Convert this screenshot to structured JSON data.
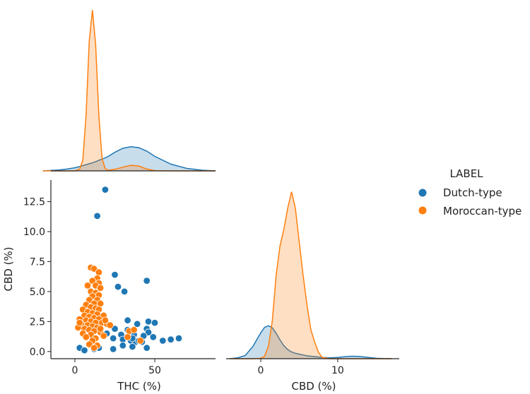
{
  "chart_data": {
    "type": "scatter",
    "subtype": "pairplot-corner",
    "hue_variable": "LABEL",
    "colors": {
      "Dutch-type": "#1f77b4",
      "Moroccan-type": "#ff7f0e"
    },
    "legend": {
      "title": "LABEL",
      "position": "right",
      "entries": [
        "Dutch-type",
        "Moroccan-type"
      ]
    },
    "variables": {
      "thc": {
        "label": "THC (%)",
        "xlim": [
          -15,
          88
        ],
        "ticks": [
          0,
          50
        ],
        "tick_labels": [
          "0",
          "50"
        ]
      },
      "cbd": {
        "label": "CBD (%)",
        "xlim": [
          -4.5,
          18
        ],
        "ylim": [
          -0.6,
          14.3
        ],
        "ticks_x": [
          0,
          10
        ],
        "tick_labels_x": [
          "0",
          "10"
        ],
        "ticks_y": [
          0.0,
          2.5,
          5.0,
          7.5,
          10.0,
          12.5
        ],
        "tick_labels_y": [
          "0.0",
          "2.5",
          "5.0",
          "7.5",
          "10.0",
          "12.5"
        ]
      }
    },
    "kde_thc": {
      "x": [
        -20,
        -10,
        -5,
        0,
        3,
        5,
        7,
        9,
        11,
        13,
        15,
        17,
        19,
        21,
        25,
        30,
        35,
        40,
        45,
        50,
        60,
        70,
        80,
        88
      ],
      "series": [
        {
          "name": "Dutch-type",
          "density": [
            0.0,
            0.0003,
            0.0006,
            0.001,
            0.0014,
            0.0017,
            0.002,
            0.0023,
            0.0026,
            0.003,
            0.0034,
            0.0038,
            0.0042,
            0.0047,
            0.006,
            0.0073,
            0.0078,
            0.0075,
            0.0064,
            0.0047,
            0.0022,
            0.0008,
            0.0002,
            0.0
          ]
        },
        {
          "name": "Moroccan-type",
          "density": [
            0.0,
            0.0,
            0.0,
            0.0,
            0.0006,
            0.0035,
            0.018,
            0.042,
            0.052,
            0.041,
            0.018,
            0.004,
            0.0007,
            0.0002,
            0.0005,
            0.0012,
            0.0018,
            0.0016,
            0.0006,
            0.0001,
            0.0,
            0.0,
            0.0,
            0.0
          ]
        }
      ]
    },
    "kde_cbd": {
      "x": [
        -4,
        -3,
        -2,
        -1,
        0,
        0.5,
        1,
        1.5,
        2,
        2.5,
        3,
        3.5,
        4,
        4.5,
        5,
        5.5,
        6,
        6.5,
        7,
        7.5,
        8,
        9,
        10,
        11,
        12,
        13,
        14,
        15,
        16,
        17
      ],
      "series": [
        {
          "name": "Dutch-type",
          "density": [
            0.0,
            0.002,
            0.008,
            0.03,
            0.062,
            0.075,
            0.079,
            0.074,
            0.061,
            0.045,
            0.031,
            0.022,
            0.016,
            0.013,
            0.011,
            0.009,
            0.007,
            0.006,
            0.005,
            0.004,
            0.003,
            0.002,
            0.003,
            0.005,
            0.006,
            0.005,
            0.003,
            0.001,
            0.0004,
            0.0
          ]
        },
        {
          "name": "Moroccan-type",
          "density": [
            0.0,
            0.0,
            0.0,
            0.0,
            0.001,
            0.006,
            0.03,
            0.09,
            0.2,
            0.27,
            0.31,
            0.36,
            0.4,
            0.36,
            0.28,
            0.2,
            0.13,
            0.07,
            0.04,
            0.015,
            0.003,
            0.0,
            0.0,
            0.0,
            0.0,
            0.0,
            0.0,
            0.0,
            0.0,
            0.0
          ]
        }
      ]
    },
    "scatter_series": [
      {
        "name": "Dutch-type",
        "points": [
          [
            19,
            13.5
          ],
          [
            14,
            11.3
          ],
          [
            25,
            6.4
          ],
          [
            45,
            5.9
          ],
          [
            27,
            5.4
          ],
          [
            31,
            5.0
          ],
          [
            46,
            2.5
          ],
          [
            50,
            2.4
          ],
          [
            33,
            2.6
          ],
          [
            39,
            2.3
          ],
          [
            25,
            1.9
          ],
          [
            33,
            1.8
          ],
          [
            45,
            1.9
          ],
          [
            46,
            1.6
          ],
          [
            29,
            1.4
          ],
          [
            37,
            1.4
          ],
          [
            20,
            1.5
          ],
          [
            24,
            1.1
          ],
          [
            30,
            1.0
          ],
          [
            35,
            0.9
          ],
          [
            38,
            0.8
          ],
          [
            40,
            0.9
          ],
          [
            43,
            1.3
          ],
          [
            49,
            1.2
          ],
          [
            55,
            0.9
          ],
          [
            60,
            1.0
          ],
          [
            65,
            1.1
          ],
          [
            36,
            0.4
          ],
          [
            30,
            0.5
          ],
          [
            24,
            0.2
          ],
          [
            15,
            0.3
          ],
          [
            12,
            0.2
          ],
          [
            3,
            0.3
          ],
          [
            6,
            0.1
          ],
          [
            45,
            0.3
          ],
          [
            42,
            0.8
          ],
          [
            36,
            1.1
          ]
        ]
      },
      {
        "name": "Moroccan-type",
        "points": [
          [
            10,
            7.0
          ],
          [
            12,
            6.9
          ],
          [
            15,
            6.6
          ],
          [
            14,
            6.1
          ],
          [
            11,
            5.9
          ],
          [
            15,
            5.7
          ],
          [
            8,
            5.5
          ],
          [
            13,
            5.5
          ],
          [
            16,
            5.3
          ],
          [
            10,
            5.0
          ],
          [
            13,
            4.9
          ],
          [
            15,
            4.7
          ],
          [
            11,
            4.6
          ],
          [
            9,
            4.3
          ],
          [
            14,
            4.3
          ],
          [
            12,
            4.0
          ],
          [
            16,
            4.0
          ],
          [
            7,
            3.9
          ],
          [
            10,
            3.7
          ],
          [
            13,
            3.6
          ],
          [
            15,
            3.5
          ],
          [
            5,
            3.5
          ],
          [
            8,
            3.3
          ],
          [
            11,
            3.2
          ],
          [
            14,
            3.1
          ],
          [
            18,
            3.0
          ],
          [
            6,
            3.0
          ],
          [
            9,
            2.9
          ],
          [
            12,
            2.8
          ],
          [
            15,
            2.7
          ],
          [
            3,
            2.7
          ],
          [
            7,
            2.6
          ],
          [
            10,
            2.5
          ],
          [
            13,
            2.4
          ],
          [
            17,
            2.4
          ],
          [
            20,
            2.3
          ],
          [
            4,
            2.3
          ],
          [
            8,
            2.2
          ],
          [
            11,
            2.1
          ],
          [
            14,
            2.0
          ],
          [
            6,
            1.9
          ],
          [
            9,
            1.8
          ],
          [
            12,
            1.7
          ],
          [
            16,
            1.6
          ],
          [
            2,
            2.0
          ],
          [
            5,
            1.5
          ],
          [
            10,
            1.4
          ],
          [
            7,
            1.2
          ],
          [
            13,
            1.1
          ],
          [
            11,
            0.9
          ],
          [
            9,
            0.6
          ],
          [
            14,
            0.5
          ],
          [
            16,
            1.9
          ],
          [
            19,
            2.6
          ],
          [
            34,
            1.7
          ],
          [
            37,
            1.8
          ],
          [
            41,
            0.9
          ],
          [
            33,
            1.2
          ],
          [
            3,
            2.4
          ],
          [
            22,
            2.2
          ],
          [
            18,
            1.3
          ],
          [
            12,
            0.3
          ]
        ]
      }
    ]
  }
}
